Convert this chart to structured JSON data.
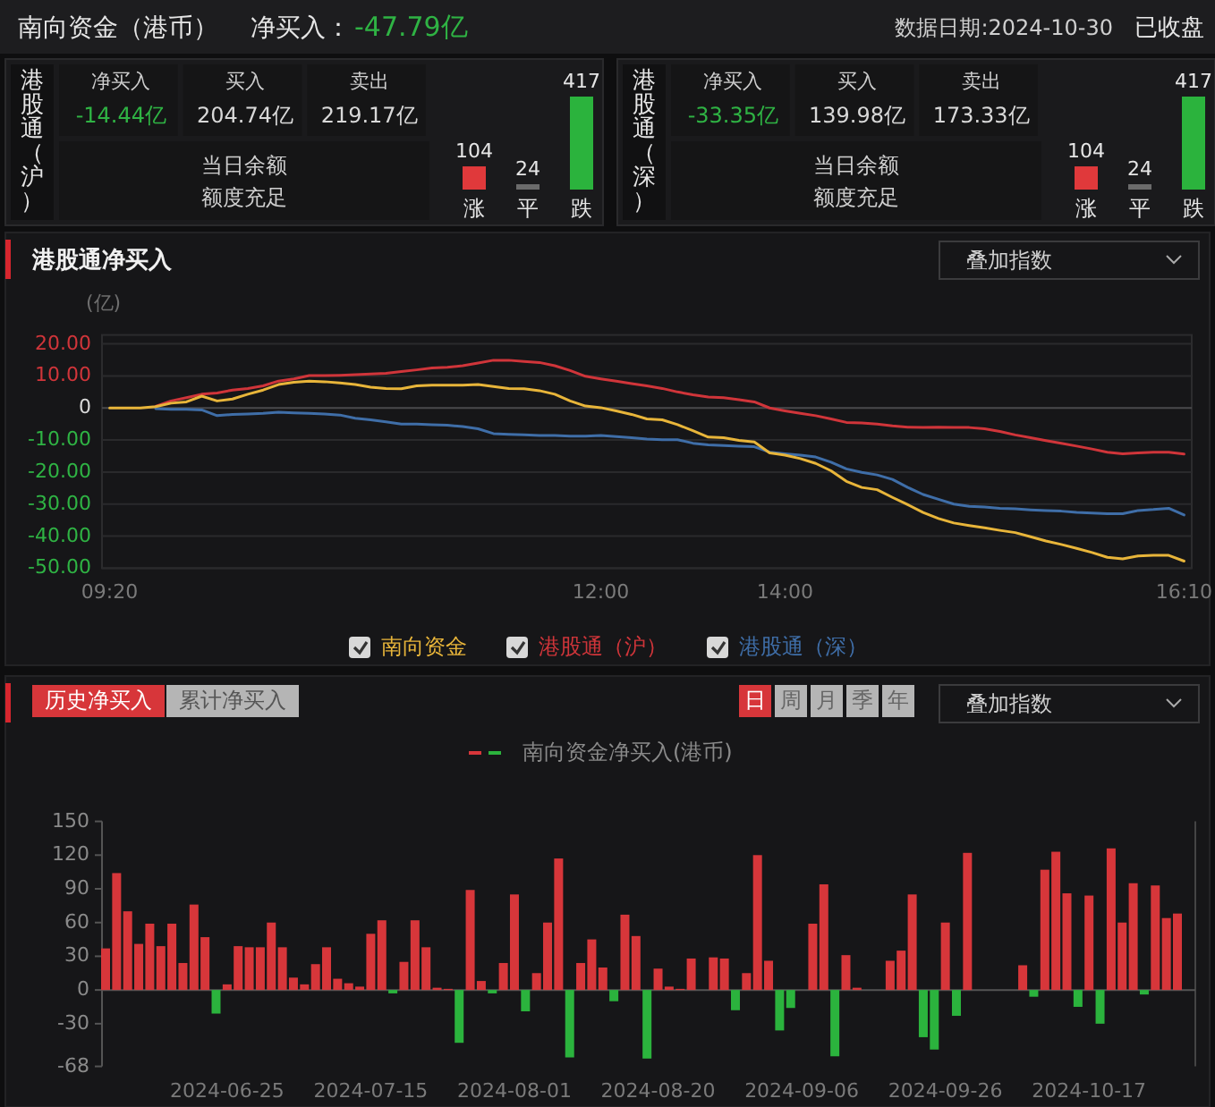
{
  "chart_data": [
    {
      "type": "other",
      "title": "南向资金（港币）",
      "annotations": [
        "净买入：",
        "-47.79亿",
        "数据日期:2024-10-30",
        "已收盘"
      ]
    },
    {
      "type": "other",
      "title": "港股通（沪）",
      "annotations": [
        "净买入",
        "-14.44亿",
        "买入",
        "204.74亿",
        "卖出",
        "219.17亿",
        "当日余额",
        "额度充足"
      ]
    },
    {
      "type": "bar",
      "categories": [
        "涨",
        "平",
        "跌"
      ],
      "values": [
        104,
        24,
        417
      ],
      "colors": [
        "#e0393b",
        "#6b6b6b",
        "#2bb33d"
      ],
      "data_labels": true
    },
    {
      "type": "other",
      "title": "港股通（深）",
      "annotations": [
        "净买入",
        "-33.35亿",
        "买入",
        "139.98亿",
        "卖出",
        "173.33亿",
        "当日余额",
        "额度充足"
      ]
    },
    {
      "type": "bar",
      "categories": [
        "涨",
        "平",
        "跌"
      ],
      "values": [
        104,
        24,
        417
      ],
      "colors": [
        "#e0393b",
        "#6b6b6b",
        "#2bb33d"
      ],
      "data_labels": true
    },
    {
      "type": "line",
      "title": "港股通净买入",
      "ylabel": "(亿)",
      "annotations": [
        "叠加指数"
      ],
      "categories": [
        "09:20",
        null,
        null,
        null,
        null,
        null,
        null,
        null,
        null,
        null,
        null,
        null,
        null,
        null,
        null,
        null,
        null,
        null,
        null,
        null,
        null,
        null,
        null,
        null,
        null,
        null,
        null,
        null,
        null,
        null,
        null,
        null,
        "12:00",
        null,
        null,
        null,
        null,
        null,
        null,
        null,
        null,
        null,
        null,
        null,
        "14:00",
        null,
        null,
        null,
        null,
        null,
        null,
        null,
        null,
        null,
        null,
        null,
        null,
        null,
        null,
        null,
        null,
        null,
        null,
        null,
        null,
        null,
        null,
        null,
        null,
        null,
        "16:10"
      ],
      "series": [
        {
          "name": "南向资金",
          "color": "#e8b53a",
          "values": [
            0,
            0,
            0,
            0.4,
            1.5,
            1.9,
            3.7,
            2.2,
            2.8,
            4.3,
            5.6,
            7.3,
            8.0,
            8.4,
            8.2,
            7.8,
            7.3,
            6.5,
            6.1,
            6.0,
            6.9,
            7.1,
            7.1,
            7.1,
            7.3,
            6.7,
            6.1,
            6.0,
            5.4,
            4.3,
            2.2,
            0.6,
            0.1,
            -0.9,
            -2.0,
            -3.4,
            -3.7,
            -5.2,
            -7.1,
            -9.1,
            -9.3,
            -10.1,
            -10.6,
            -14.0,
            -14.7,
            -15.8,
            -17.3,
            -19.6,
            -22.9,
            -24.8,
            -25.5,
            -27.9,
            -30.2,
            -32.6,
            -34.5,
            -35.9,
            -36.7,
            -37.4,
            -38.2,
            -38.9,
            -40.2,
            -41.5,
            -42.6,
            -43.8,
            -45.1,
            -46.6,
            -47.1,
            -46.2,
            -46.0,
            -46.0,
            -47.8
          ]
        },
        {
          "name": "港股通（沪）",
          "color": "#d0353a",
          "values": [
            null,
            null,
            null,
            0.5,
            2.2,
            3.2,
            4.3,
            4.7,
            5.6,
            6.1,
            6.9,
            8.4,
            9.1,
            10.1,
            10.1,
            10.2,
            10.4,
            10.6,
            10.8,
            11.4,
            11.9,
            12.5,
            12.7,
            13.2,
            14.0,
            14.9,
            14.9,
            14.5,
            14.2,
            13.2,
            11.7,
            9.9,
            9.1,
            8.4,
            7.6,
            6.9,
            6.1,
            5.0,
            4.1,
            3.4,
            3.2,
            2.6,
            1.9,
            0,
            -0.9,
            -1.7,
            -2.4,
            -3.4,
            -4.5,
            -4.7,
            -5.0,
            -5.6,
            -6.0,
            -6.1,
            -6.0,
            -6.1,
            -6.1,
            -6.5,
            -7.3,
            -8.4,
            -9.3,
            -10.2,
            -11.0,
            -11.9,
            -12.8,
            -13.8,
            -14.3,
            -14.0,
            -13.8,
            -13.8,
            -14.4
          ]
        },
        {
          "name": "港股通（深）",
          "color": "#3f6ea8",
          "values": [
            null,
            null,
            null,
            -0.2,
            -0.4,
            -0.4,
            -0.6,
            -2.4,
            -2.0,
            -1.9,
            -1.7,
            -1.3,
            -1.5,
            -1.7,
            -1.9,
            -2.2,
            -3.2,
            -3.7,
            -4.3,
            -5.0,
            -5.0,
            -5.2,
            -5.4,
            -5.8,
            -6.5,
            -8.0,
            -8.2,
            -8.4,
            -8.6,
            -8.6,
            -8.8,
            -8.8,
            -8.6,
            -8.9,
            -9.3,
            -9.7,
            -9.9,
            -9.9,
            -11.0,
            -11.5,
            -11.7,
            -11.9,
            -12.1,
            -13.8,
            -14.3,
            -14.7,
            -15.3,
            -16.9,
            -19.0,
            -20.1,
            -20.9,
            -22.3,
            -24.8,
            -27.0,
            -28.5,
            -30.0,
            -30.7,
            -30.9,
            -31.3,
            -31.5,
            -31.8,
            -32.0,
            -32.2,
            -32.6,
            -32.8,
            -33.0,
            -33.0,
            -32.0,
            -31.7,
            -31.3,
            -33.4
          ]
        }
      ],
      "ylim": [
        -50,
        20
      ],
      "yticks": [
        {
          "value": 20,
          "label": "20.00"
        },
        {
          "value": 10,
          "label": "10.00"
        },
        0,
        {
          "value": -10,
          "label": "-10.00"
        },
        {
          "value": -20,
          "label": "-20.00"
        },
        {
          "value": -30,
          "label": "-30.00"
        },
        {
          "value": -40,
          "label": "-40.00"
        },
        {
          "value": -50,
          "label": "-50.00"
        }
      ],
      "grid": "y",
      "legend": "bottom",
      "marker": "none",
      "line_style": "solid"
    },
    {
      "type": "bar",
      "annotations": [
        "历史净买入",
        "累计净买入",
        "日",
        "周",
        "月",
        "季",
        "年",
        "叠加指数"
      ],
      "categories": [
        null,
        null,
        null,
        null,
        null,
        null,
        null,
        null,
        null,
        null,
        null,
        "2024-06-25",
        null,
        null,
        null,
        null,
        null,
        null,
        null,
        null,
        null,
        null,
        null,
        null,
        "2024-07-15",
        null,
        null,
        null,
        null,
        null,
        null,
        null,
        null,
        null,
        null,
        null,
        null,
        "2024-08-01",
        null,
        null,
        null,
        null,
        null,
        null,
        null,
        null,
        null,
        null,
        null,
        null,
        "2024-08-20",
        null,
        null,
        null,
        null,
        null,
        null,
        null,
        null,
        null,
        null,
        null,
        null,
        "2024-09-06",
        null,
        null,
        null,
        null,
        null,
        null,
        null,
        null,
        null,
        null,
        null,
        null,
        "2024-09-26",
        null,
        null,
        null,
        null,
        null,
        null,
        null,
        null,
        null,
        null,
        null,
        null,
        "2024-10-17",
        null,
        null,
        null,
        null,
        null,
        null,
        null,
        null
      ],
      "series": [
        {
          "name": "南向资金净买入(港币)",
          "values": [
            37,
            104,
            70,
            41,
            59,
            39,
            59,
            24,
            76,
            47,
            -21,
            5,
            39,
            38,
            38,
            60,
            38,
            11,
            5,
            23,
            38,
            10,
            6,
            3,
            50,
            62,
            -3,
            25,
            62,
            38,
            2,
            1,
            -47,
            89,
            8,
            -3,
            24,
            85,
            -19,
            15,
            60,
            117,
            -60,
            24,
            45,
            20,
            -10,
            67,
            48,
            -61,
            19,
            3,
            1,
            28,
            null,
            29,
            28,
            -18,
            15,
            120,
            26,
            -36,
            -16,
            null,
            59,
            94,
            -59,
            31,
            2,
            null,
            null,
            26,
            35,
            85,
            -42,
            -53,
            60,
            -23,
            122,
            null,
            null,
            null,
            null,
            22,
            -6,
            107,
            123,
            86,
            -15,
            84,
            -30,
            126,
            60,
            95,
            -4,
            93,
            64,
            68
          ]
        }
      ],
      "colors": [
        "#d7363a",
        "#d7363a",
        "#d7363a",
        "#d7363a",
        "#d7363a",
        "#d7363a",
        "#d7363a",
        "#d7363a",
        "#d7363a",
        "#d7363a",
        "#2bb33d",
        "#d7363a",
        "#d7363a",
        "#d7363a",
        "#d7363a",
        "#d7363a",
        "#d7363a",
        "#d7363a",
        "#d7363a",
        "#d7363a",
        "#d7363a",
        "#d7363a",
        "#d7363a",
        "#d7363a",
        "#d7363a",
        "#d7363a",
        "#2bb33d",
        "#d7363a",
        "#d7363a",
        "#d7363a",
        "#d7363a",
        "#d7363a",
        "#2bb33d",
        "#d7363a",
        "#d7363a",
        "#2bb33d",
        "#d7363a",
        "#d7363a",
        "#2bb33d",
        "#d7363a",
        "#d7363a",
        "#d7363a",
        "#2bb33d",
        "#d7363a",
        "#d7363a",
        "#d7363a",
        "#2bb33d",
        "#d7363a",
        "#d7363a",
        "#2bb33d",
        "#d7363a",
        "#d7363a",
        "#d7363a",
        "#d7363a",
        null,
        "#d7363a",
        "#d7363a",
        "#2bb33d",
        "#d7363a",
        "#d7363a",
        "#d7363a",
        "#2bb33d",
        "#2bb33d",
        null,
        "#d7363a",
        "#d7363a",
        "#2bb33d",
        "#d7363a",
        "#d7363a",
        null,
        null,
        "#d7363a",
        "#d7363a",
        "#d7363a",
        "#2bb33d",
        "#2bb33d",
        "#d7363a",
        "#2bb33d",
        "#d7363a",
        null,
        null,
        null,
        null,
        "#d7363a",
        "#2bb33d",
        "#d7363a",
        "#d7363a",
        "#d7363a",
        "#2bb33d",
        "#d7363a",
        "#2bb33d",
        "#d7363a",
        "#d7363a",
        "#d7363a",
        "#2bb33d",
        "#d7363a",
        "#d7363a",
        "#d7363a"
      ],
      "ylim": [
        -68,
        150
      ],
      "yticks": [
        150,
        120,
        90,
        60,
        30,
        0,
        -30,
        -68
      ],
      "legend": "top"
    }
  ]
}
